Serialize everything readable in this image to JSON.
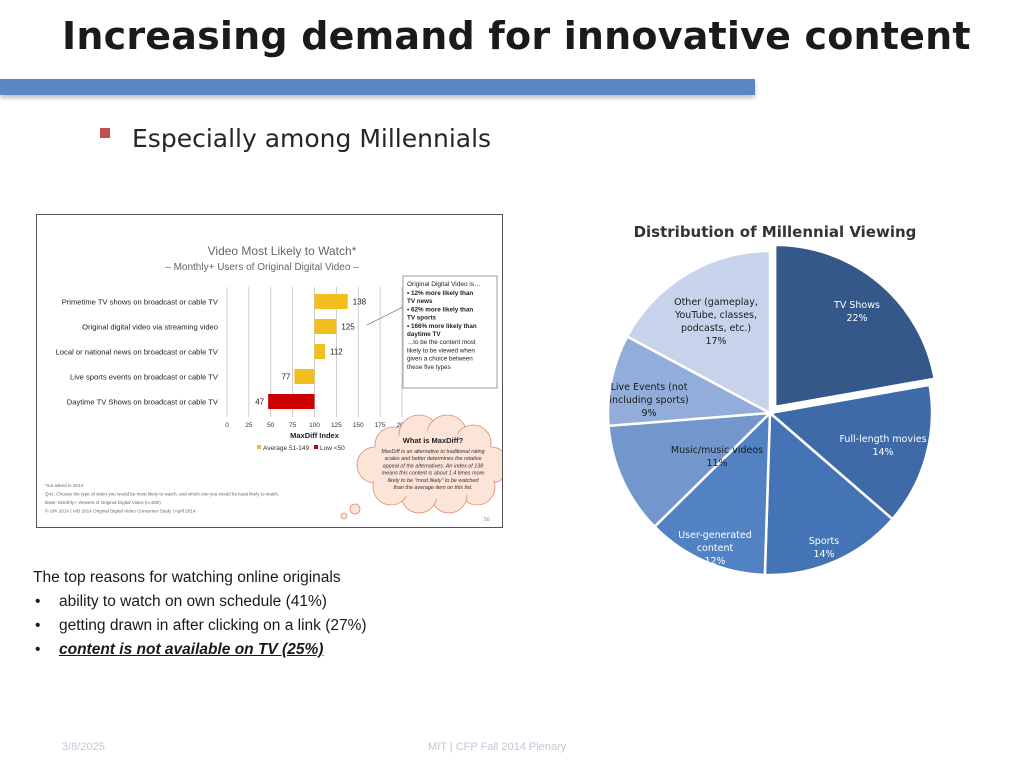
{
  "slide": {
    "title": "Increasing demand for innovative content",
    "bullet": "Especially among Millennials",
    "footer_date": "3/8/2025",
    "footer_center": "MIT | CFP Fall 2014 Plenary",
    "accent": "#5b87c2",
    "bullet_color": "#c0504d"
  },
  "reasons": {
    "heading": "The top reasons for watching online originals",
    "items": [
      "ability to watch on own schedule (41%)",
      "getting drawn in after clicking on a link (27%)",
      "content is not available on TV (25%)"
    ]
  },
  "chart_data": [
    {
      "type": "bar",
      "orientation": "horizontal",
      "title": "Video Most Likely to Watch*",
      "subtitle": "– Monthly+ Users of Original Digital Video –",
      "xlabel": "MaxDiff Index",
      "xlim": [
        0,
        200
      ],
      "xticks": [
        "0",
        "25",
        "50",
        "75",
        "100",
        "125",
        "150",
        "175",
        "200"
      ],
      "categories": [
        "Primetime TV shows on broadcast or cable TV",
        "Original digital video via streaming video",
        "Local or national news on broadcast or cable TV",
        "Live sports events on broadcast or cable TV",
        "Daytime TV Shows on broadcast or cable TV"
      ],
      "values": [
        138,
        125,
        112,
        77,
        47
      ],
      "baseline": 100,
      "colors": {
        "average": "#f2c01e",
        "low": "#cc0000"
      },
      "legend": [
        "Average 51-149",
        "Low <50"
      ],
      "callout_intro": "Original Digital Video is…",
      "callout_items": [
        "12% more likely than TV news",
        "62% more likely than TV sports",
        "166% more likely than daytime TV"
      ],
      "callout_outro": "…to be the content most likely to be viewed when given a choice between these five types",
      "bubble_title": "What is MaxDiff?",
      "bubble_text": "MaxDiff is an alternative to traditional rating scales and better determines the relative appeal of the alternatives. An index of 138 means this content is about 1.4 times more likely to be \"most likely\" to be watched than the average item on this list.",
      "footnotes": [
        "*not asked in 2013",
        "Q41: Choose the type of video you would be most likely to watch, and which one you would be least likely to watch.",
        "Base: Monthly+ Viewers of Original Digital Video (n=680)",
        "© GfK 2014 | IAB 2014 Original Digital Video Consumer Study | April 2014"
      ],
      "page_number": "50"
    },
    {
      "type": "pie",
      "title": "Distribution of Millennial Viewing",
      "slices": [
        {
          "label": "TV Shows",
          "value": 22,
          "color": "#34588a"
        },
        {
          "label": "Full-length movies",
          "value": 14,
          "color": "#3e6aa8"
        },
        {
          "label": "Sports",
          "value": 14,
          "color": "#4474b5"
        },
        {
          "label": "User-generated content",
          "value": 12,
          "color": "#5282c4"
        },
        {
          "label": "Music/music videos",
          "value": 11,
          "color": "#7397cc"
        },
        {
          "label": "Live Events (not including sports)",
          "value": 9,
          "color": "#93adda"
        },
        {
          "label": "Other (gameplay, YouTube, classes, podcasts, etc.)",
          "value": 17,
          "color": "#c6d3ea"
        }
      ],
      "slice_labels": [
        {
          "lines": [
            "TV Shows",
            "22%"
          ],
          "color": "#ffffff"
        },
        {
          "lines": [
            "Full-length movies",
            "14%"
          ],
          "color": "#ffffff"
        },
        {
          "lines": [
            "Sports",
            "14%"
          ],
          "color": "#ffffff"
        },
        {
          "lines": [
            "User-generated",
            "content",
            "12%"
          ],
          "color": "#ffffff"
        },
        {
          "lines": [
            "Music/music videos",
            "11%"
          ],
          "color": "#1a1a1a"
        },
        {
          "lines": [
            "Live Events (not",
            "including sports)",
            "9%"
          ],
          "color": "#1a1a1a"
        },
        {
          "lines": [
            "Other (gameplay,",
            "YouTube, classes,",
            "podcasts, etc.)",
            "17%"
          ],
          "color": "#1a1a1a"
        }
      ]
    }
  ]
}
